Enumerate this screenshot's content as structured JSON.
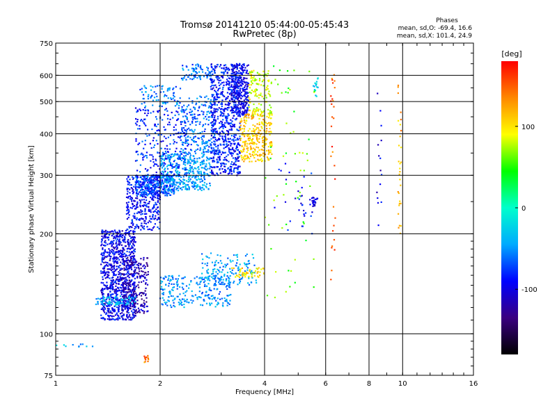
{
  "chart_data": {
    "type": "scatter",
    "title": "Tromsø 20141210 05:44:00-05:45:43",
    "subtitle": "RwPretec (8p)",
    "xlabel": "Frequency [MHz]",
    "ylabel": "Stationary phase Virtual Height [km]",
    "x_scale": "log",
    "y_scale": "log",
    "xlim": [
      1,
      16
    ],
    "ylim": [
      75,
      750
    ],
    "x_ticks": [
      "1",
      "2",
      "4",
      "6",
      "8",
      "10",
      "16"
    ],
    "x_tick_values": [
      1,
      2,
      4,
      6,
      8,
      10,
      16
    ],
    "y_ticks": [
      "75",
      "100",
      "200",
      "300",
      "400",
      "500",
      "600",
      "750"
    ],
    "y_tick_values": [
      75,
      100,
      200,
      300,
      400,
      500,
      600,
      750
    ],
    "grid": true,
    "stats": {
      "heading": "Phases",
      "line_o": "mean, sd,O: -69.4, 16.6",
      "line_x": "mean, sd,X: 101.4, 24.9"
    },
    "colorbar": {
      "label": "[deg]",
      "range": [
        -180,
        180
      ],
      "ticks": [
        "100",
        "0",
        "-100"
      ],
      "tick_values": [
        100,
        0,
        -100
      ],
      "colors": [
        "#000000",
        "#3a0080",
        "#0000ff",
        "#00aaff",
        "#00ffcc",
        "#00ff00",
        "#ffff00",
        "#ff8800",
        "#ff0000"
      ]
    },
    "series": [
      {
        "clusters": [
          {
            "x": [
              1.35,
              1.7
            ],
            "y": [
              110,
              205
            ],
            "phase": -95,
            "n": 900
          },
          {
            "x": [
              1.55,
              1.85
            ],
            "y": [
              115,
              170
            ],
            "phase": -115,
            "n": 250
          },
          {
            "x": [
              1.6,
              2.0
            ],
            "y": [
              205,
              300
            ],
            "phase": -90,
            "n": 350
          },
          {
            "x": [
              1.7,
              2.2
            ],
            "y": [
              260,
              300
            ],
            "phase": -70,
            "n": 300
          },
          {
            "x": [
              2.0,
              2.8
            ],
            "y": [
              270,
              350
            ],
            "phase": -45,
            "n": 400
          },
          {
            "x": [
              1.7,
              2.4
            ],
            "y": [
              300,
              480
            ],
            "phase": -80,
            "n": 250
          },
          {
            "x": [
              1.75,
              2.3
            ],
            "y": [
              480,
              560
            ],
            "phase": -55,
            "n": 80
          },
          {
            "x": [
              2.3,
              2.9
            ],
            "y": [
              350,
              520
            ],
            "phase": -60,
            "n": 220
          },
          {
            "x": [
              2.3,
              2.8
            ],
            "y": [
              580,
              650
            ],
            "phase": -60,
            "n": 80
          },
          {
            "x": [
              2.8,
              3.4
            ],
            "y": [
              300,
              650
            ],
            "phase": -85,
            "n": 700
          },
          {
            "x": [
              3.2,
              3.6
            ],
            "y": [
              450,
              650
            ],
            "phase": -95,
            "n": 300
          },
          {
            "x": [
              3.4,
              4.2
            ],
            "y": [
              330,
              460
            ],
            "phase": 110,
            "n": 280
          },
          {
            "x": [
              3.6,
              4.2
            ],
            "y": [
              450,
              620
            ],
            "phase": 85,
            "n": 130
          },
          {
            "x": [
              2.0,
              3.2
            ],
            "y": [
              120,
              150
            ],
            "phase": -50,
            "n": 250
          },
          {
            "x": [
              2.6,
              3.8
            ],
            "y": [
              140,
              175
            ],
            "phase": -45,
            "n": 150
          },
          {
            "x": [
              3.2,
              4.0
            ],
            "y": [
              148,
              158
            ],
            "phase": 100,
            "n": 50
          },
          {
            "x": [
              1.3,
              1.7
            ],
            "y": [
              122,
              130
            ],
            "phase": -40,
            "n": 80
          },
          {
            "x": [
              5.4,
              5.7
            ],
            "y": [
              240,
              262
            ],
            "phase": -100,
            "n": 25
          },
          {
            "x": [
              5.5,
              5.7
            ],
            "y": [
              510,
              590
            ],
            "phase": -30,
            "n": 15
          },
          {
            "x": [
              1.8,
              1.85
            ],
            "y": [
              82,
              86
            ],
            "phase": 140,
            "n": 12
          },
          {
            "x": [
              1.0,
              1.3
            ],
            "y": [
              91,
              94
            ],
            "phase": -40,
            "n": 10
          },
          {
            "x": [
              4.2,
              5.5
            ],
            "y": [
              200,
              330
            ],
            "phase": -90,
            "n": 30
          },
          {
            "x": [
              6.2,
              6.4
            ],
            "y": [
              130,
              620
            ],
            "phase": 150,
            "n": 30
          },
          {
            "x": [
              8.4,
              8.7
            ],
            "y": [
              200,
              600
            ],
            "phase": -100,
            "n": 15
          },
          {
            "x": [
              9.7,
              9.9
            ],
            "y": [
              200,
              560
            ],
            "phase": 120,
            "n": 30
          },
          {
            "x": [
              4.0,
              5.6
            ],
            "y": [
              120,
              640
            ],
            "phase": 60,
            "n": 60
          }
        ]
      }
    ]
  }
}
